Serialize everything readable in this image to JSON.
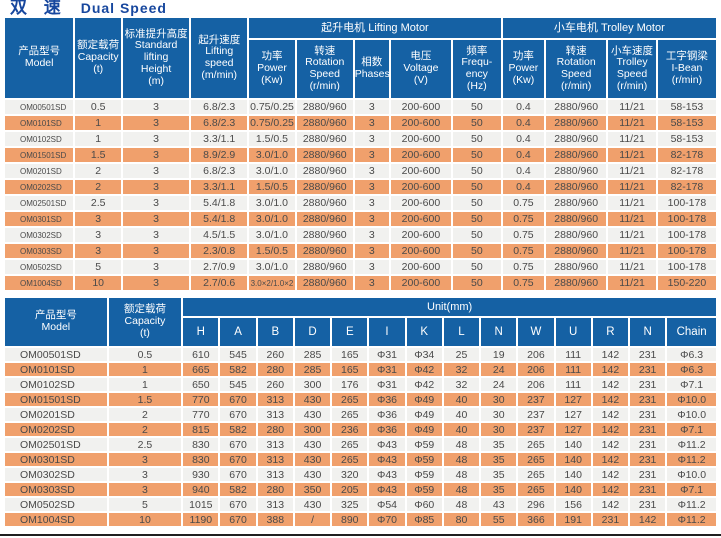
{
  "title": {
    "zh": "双 速",
    "en": "Dual Speed"
  },
  "table1": {
    "headers": {
      "model": "产品型号\nModel",
      "capacity": "额定载荷\nCapacity\n(t)",
      "height": "标准提升高度\nStandard\nlifting\nHeight\n(m)",
      "lifting_speed": "起升速度\nLifting\nspeed\n(m/min)",
      "lifting_motor_group": "起升电机 Lifting Motor",
      "power1": "功率\nPower\n(Kw)",
      "rotation1": "转速\nRotation\nSpeed\n(r/min)",
      "phases": "相数\nPhases",
      "voltage": "电压\nVoltage\n(V)",
      "frequency": "频率\nFrequ-\nency\n(Hz)",
      "trolley_motor_group": "小车电机 Trolley Motor",
      "power2": "功率\nPower\n(Kw)",
      "rotation2": "转速\nRotation\nSpeed\n(r/min)",
      "trolley_speed": "小车速度\nTrolley\nSpeed\n(r/min)",
      "ibeam": "工字钢梁\nI-Bean\n(r/min)"
    },
    "rows": [
      [
        "OM00501SD",
        "0.5",
        "3",
        "6.8/2.3",
        "0.75/0.25",
        "2880/960",
        "3",
        "200-600",
        "50",
        "0.4",
        "2880/960",
        "11/21",
        "58-153"
      ],
      [
        "OM0101SD",
        "1",
        "3",
        "6.8/2.3",
        "0.75/0.25",
        "2880/960",
        "3",
        "200-600",
        "50",
        "0.4",
        "2880/960",
        "11/21",
        "58-153"
      ],
      [
        "OM0102SD",
        "1",
        "3",
        "3.3/1.1",
        "1.5/0.5",
        "2880/960",
        "3",
        "200-600",
        "50",
        "0.4",
        "2880/960",
        "11/21",
        "58-153"
      ],
      [
        "OM01501SD",
        "1.5",
        "3",
        "8.9/2.9",
        "3.0/1.0",
        "2880/960",
        "3",
        "200-600",
        "50",
        "0.4",
        "2880/960",
        "11/21",
        "82-178"
      ],
      [
        "OM0201SD",
        "2",
        "3",
        "6.8/2.3",
        "3.0/1.0",
        "2880/960",
        "3",
        "200-600",
        "50",
        "0.4",
        "2880/960",
        "11/21",
        "82-178"
      ],
      [
        "OM0202SD",
        "2",
        "3",
        "3.3/1.1",
        "1.5/0.5",
        "2880/960",
        "3",
        "200-600",
        "50",
        "0.4",
        "2880/960",
        "11/21",
        "82-178"
      ],
      [
        "OM02501SD",
        "2.5",
        "3",
        "5.4/1.8",
        "3.0/1.0",
        "2880/960",
        "3",
        "200-600",
        "50",
        "0.75",
        "2880/960",
        "11/21",
        "100-178"
      ],
      [
        "OM0301SD",
        "3",
        "3",
        "5.4/1.8",
        "3.0/1.0",
        "2880/960",
        "3",
        "200-600",
        "50",
        "0.75",
        "2880/960",
        "11/21",
        "100-178"
      ],
      [
        "OM0302SD",
        "3",
        "3",
        "4.5/1.5",
        "3.0/1.0",
        "2880/960",
        "3",
        "200-600",
        "50",
        "0.75",
        "2880/960",
        "11/21",
        "100-178"
      ],
      [
        "OM0303SD",
        "3",
        "3",
        "2.3/0.8",
        "1.5/0.5",
        "2880/960",
        "3",
        "200-600",
        "50",
        "0.75",
        "2880/960",
        "11/21",
        "100-178"
      ],
      [
        "OM0502SD",
        "5",
        "3",
        "2.7/0.9",
        "3.0/1.0",
        "2880/960",
        "3",
        "200-600",
        "50",
        "0.75",
        "2880/960",
        "11/21",
        "100-178"
      ],
      [
        "OM1004SD",
        "10",
        "3",
        "2.7/0.6",
        "3.0×2/1.0×2",
        "2880/960",
        "3",
        "200-600",
        "50",
        "0.75",
        "2880/960",
        "11/21",
        "150-220"
      ]
    ]
  },
  "table2": {
    "headers": {
      "model": "产品型号\nModel",
      "capacity": "额定载荷\nCapacity\n(t)",
      "unit_group": "Unit(mm)",
      "letters": [
        "H",
        "A",
        "B",
        "D",
        "E",
        "I",
        "K",
        "L",
        "N",
        "W",
        "U",
        "R",
        "N",
        "Chain"
      ]
    },
    "rows": [
      [
        "OM00501SD",
        "0.5",
        "610",
        "545",
        "260",
        "285",
        "165",
        "Φ31",
        "Φ34",
        "25",
        "19",
        "206",
        "111",
        "142",
        "231",
        "Φ6.3"
      ],
      [
        "OM0101SD",
        "1",
        "665",
        "582",
        "280",
        "285",
        "165",
        "Φ31",
        "Φ42",
        "32",
        "24",
        "206",
        "111",
        "142",
        "231",
        "Φ6.3"
      ],
      [
        "OM0102SD",
        "1",
        "650",
        "545",
        "260",
        "300",
        "176",
        "Φ31",
        "Φ42",
        "32",
        "24",
        "206",
        "111",
        "142",
        "231",
        "Φ7.1"
      ],
      [
        "OM01501SD",
        "1.5",
        "770",
        "670",
        "313",
        "430",
        "265",
        "Φ36",
        "Φ49",
        "40",
        "30",
        "237",
        "127",
        "142",
        "231",
        "Φ10.0"
      ],
      [
        "OM0201SD",
        "2",
        "770",
        "670",
        "313",
        "430",
        "265",
        "Φ36",
        "Φ49",
        "40",
        "30",
        "237",
        "127",
        "142",
        "231",
        "Φ10.0"
      ],
      [
        "OM0202SD",
        "2",
        "815",
        "582",
        "280",
        "300",
        "236",
        "Φ36",
        "Φ49",
        "40",
        "30",
        "237",
        "127",
        "142",
        "231",
        "Φ7.1"
      ],
      [
        "OM02501SD",
        "2.5",
        "830",
        "670",
        "313",
        "430",
        "265",
        "Φ43",
        "Φ59",
        "48",
        "35",
        "265",
        "140",
        "142",
        "231",
        "Φ11.2"
      ],
      [
        "OM0301SD",
        "3",
        "830",
        "670",
        "313",
        "430",
        "265",
        "Φ43",
        "Φ59",
        "48",
        "35",
        "265",
        "140",
        "142",
        "231",
        "Φ11.2"
      ],
      [
        "OM0302SD",
        "3",
        "930",
        "670",
        "313",
        "430",
        "320",
        "Φ43",
        "Φ59",
        "48",
        "35",
        "265",
        "140",
        "142",
        "231",
        "Φ10.0"
      ],
      [
        "OM0303SD",
        "3",
        "940",
        "582",
        "280",
        "350",
        "205",
        "Φ43",
        "Φ59",
        "48",
        "35",
        "265",
        "140",
        "142",
        "231",
        "Φ7.1"
      ],
      [
        "OM0502SD",
        "5",
        "1015",
        "670",
        "313",
        "430",
        "325",
        "Φ54",
        "Φ60",
        "48",
        "43",
        "296",
        "156",
        "142",
        "231",
        "Φ11.2"
      ],
      [
        "OM1004SD",
        "10",
        "1190",
        "670",
        "388",
        "/",
        "890",
        "Φ70",
        "Φ85",
        "80",
        "55",
        "366",
        "191",
        "231",
        "142",
        "Φ11.2"
      ]
    ]
  },
  "colors": {
    "header_blue": "#1561a4",
    "row_orange": "#f0a06c",
    "row_light": "#f1f1ef",
    "title_blue": "#17479e"
  }
}
